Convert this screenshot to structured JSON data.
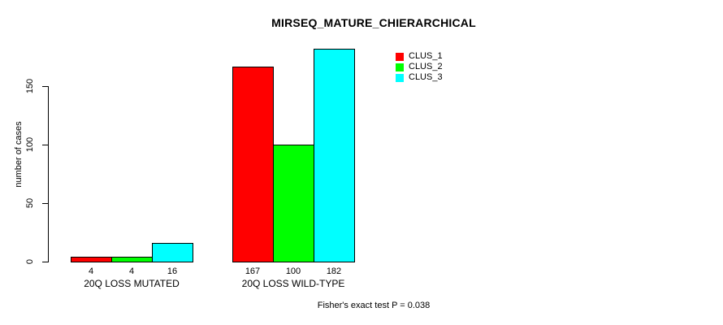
{
  "chart_data": {
    "type": "bar",
    "title": "MIRSEQ_MATURE_CHIERARCHICAL",
    "ylabel": "number of cases",
    "xlabel": "",
    "categories": [
      "20Q LOSS MUTATED",
      "20Q LOSS WILD-TYPE"
    ],
    "series": [
      {
        "name": "CLUS_1",
        "color": "#ff0000",
        "values": [
          4,
          167
        ]
      },
      {
        "name": "CLUS_2",
        "color": "#00ff00",
        "values": [
          4,
          100
        ]
      },
      {
        "name": "CLUS_3",
        "color": "#00ffff",
        "values": [
          16,
          182
        ]
      }
    ],
    "yticks": [
      0,
      50,
      100,
      150
    ],
    "ylim": [
      0,
      185
    ],
    "grid": false,
    "bar_border_color": "#000000",
    "value_labels_shown": true,
    "legend_position": "top-right",
    "annotation": "Fisher's exact test P = 0.038"
  }
}
